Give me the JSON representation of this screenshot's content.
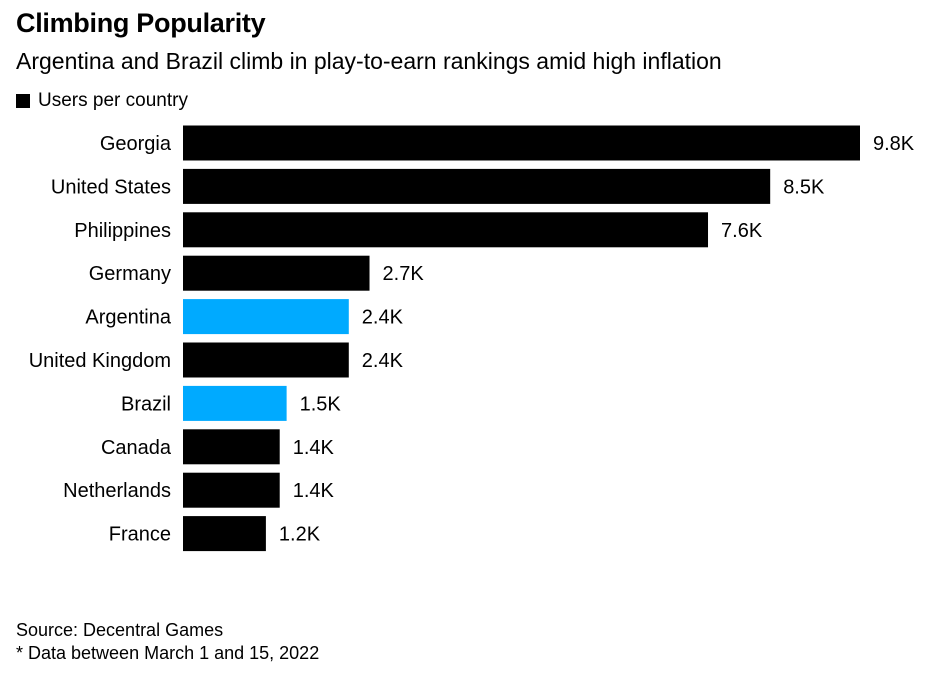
{
  "title": "Climbing Popularity",
  "subtitle": "Argentina and Brazil climb in play-to-earn rankings amid high inflation",
  "legend": {
    "label": "Users per country",
    "color": "#000000"
  },
  "source": "Source: Decentral Games",
  "note": "* Data between March 1 and 15, 2022",
  "colors": {
    "default": "#000000",
    "highlight": "#00aaff"
  },
  "chart_data": {
    "type": "bar",
    "orientation": "horizontal",
    "categories": [
      "Georgia",
      "United States",
      "Philippines",
      "Germany",
      "Argentina",
      "United Kingdom",
      "Brazil",
      "Canada",
      "Netherlands",
      "France"
    ],
    "values": [
      9.8,
      8.5,
      7.6,
      2.7,
      2.4,
      2.4,
      1.5,
      1.4,
      1.4,
      1.2
    ],
    "value_labels": [
      "9.8K",
      "8.5K",
      "7.6K",
      "2.7K",
      "2.4K",
      "2.4K",
      "1.5K",
      "1.4K",
      "1.4K",
      "1.2K"
    ],
    "highlighted": [
      "Argentina",
      "Brazil"
    ],
    "series": [
      {
        "name": "Users per country",
        "values": [
          9.8,
          8.5,
          7.6,
          2.7,
          2.4,
          2.4,
          1.5,
          1.4,
          1.4,
          1.2
        ]
      }
    ],
    "unit": "K",
    "xlim": [
      0,
      9.8
    ],
    "grid": false,
    "legend_position": "top-left"
  }
}
